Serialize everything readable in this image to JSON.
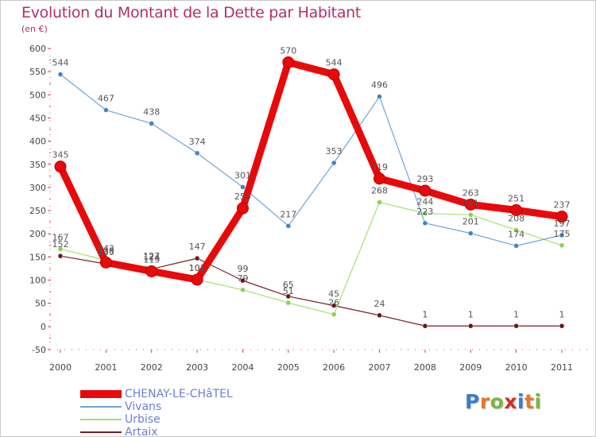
{
  "header": {
    "title": "Evolution du Montant de la Dette par Habitant",
    "unit": "(en €)"
  },
  "brand": {
    "text": "Proxiti",
    "letter_colors": [
      "#3a7bd5",
      "#e87722",
      "#7cb342",
      "#d62b2b",
      "#3a7bd5",
      "#e87722",
      "#7cb342"
    ]
  },
  "chart_data": {
    "type": "line",
    "title": "Evolution du Montant de la Dette par Habitant",
    "subtitle": "(en €)",
    "xlabel": "",
    "ylabel": "",
    "x": [
      "2000",
      "2001",
      "2002",
      "2003",
      "2004",
      "2005",
      "2006",
      "2007",
      "2008",
      "2009",
      "2010",
      "2011"
    ],
    "ylim": [
      -50,
      600
    ],
    "yticks": [
      -50,
      0,
      50,
      100,
      150,
      200,
      250,
      300,
      350,
      400,
      450,
      500,
      550,
      600
    ],
    "grid": false,
    "legend_position": "bottom-left",
    "series": [
      {
        "name": "CHENAY-LE-CHâTEL",
        "color": "#e8090b",
        "values": [
          345,
          138,
          119,
          101,
          255,
          570,
          544,
          319,
          293,
          263,
          251,
          237
        ]
      },
      {
        "name": "Vivans",
        "color": "#6ea5d5",
        "values": [
          544,
          467,
          438,
          374,
          301,
          217,
          353,
          496,
          223,
          201,
          174,
          197
        ]
      },
      {
        "name": "Urbise",
        "color": "#a6e071",
        "values": [
          167,
          143,
          127,
          101,
          79,
          51,
          26,
          268,
          244,
          241,
          208,
          175
        ]
      },
      {
        "name": "Artaix",
        "color": "#7a1f25",
        "values": [
          152,
          135,
          124,
          147,
          99,
          65,
          45,
          24,
          1,
          1,
          1,
          1
        ]
      }
    ]
  }
}
